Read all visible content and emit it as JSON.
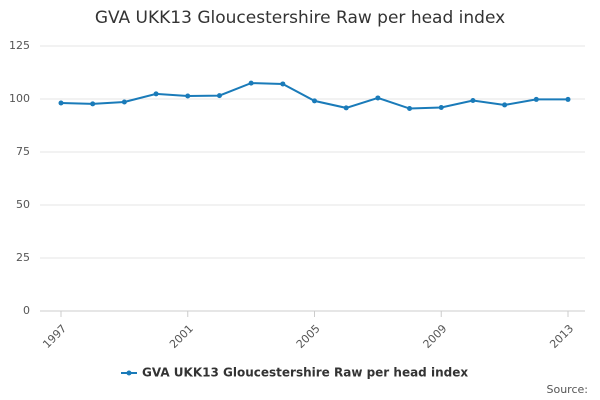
{
  "chart_data": {
    "type": "line",
    "title": "GVA UKK13 Gloucestershire Raw per head index",
    "x": [
      1997,
      1998,
      1999,
      2000,
      2001,
      2002,
      2003,
      2004,
      2005,
      2006,
      2007,
      2008,
      2009,
      2010,
      2011,
      2012,
      2013
    ],
    "series": [
      {
        "name": "GVA UKK13 Gloucestershire Raw per head index",
        "color": "#1a7bb9",
        "values": [
          98.1,
          97.7,
          98.6,
          102.4,
          101.4,
          101.6,
          107.5,
          107.1,
          99.1,
          95.8,
          100.5,
          95.5,
          96.0,
          99.3,
          97.2,
          99.8,
          99.8
        ]
      }
    ],
    "xlim": [
      1997,
      2013
    ],
    "xticks": [
      1997,
      2001,
      2005,
      2009,
      2013
    ],
    "ylim": [
      0,
      125
    ],
    "yticks": [
      0,
      25,
      50,
      75,
      100,
      125
    ],
    "grid": true,
    "source": "Source:"
  }
}
